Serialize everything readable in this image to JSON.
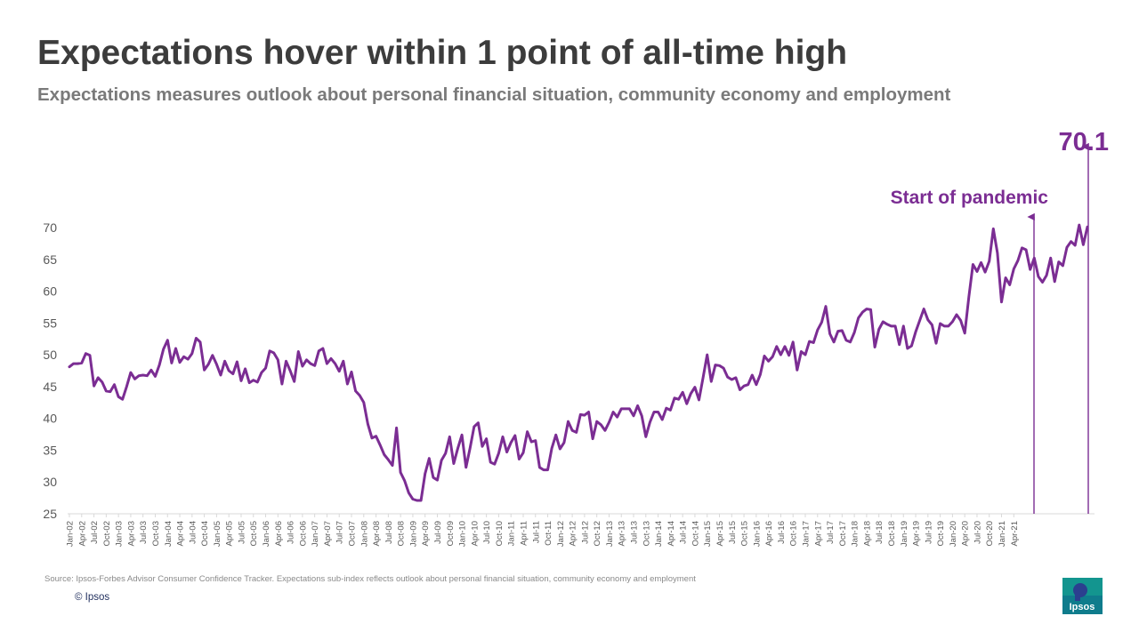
{
  "header": {
    "title": "Expectations hover within 1 point of all-time high",
    "subtitle": "Expectations measures outlook about personal financial situation, community economy and employment"
  },
  "footer": {
    "source": "Source: Ipsos-Forbes Advisor Consumer Confidence Tracker. Expectations sub-index reflects outlook about personal financial situation, community economy and employment",
    "copyright": "© Ipsos",
    "logo_text": "Ipsos"
  },
  "colors": {
    "series": "#7b2d93",
    "title": "#3c3c3c",
    "subtitle": "#7a7a7a"
  },
  "chart_data": {
    "type": "line",
    "title": "",
    "xlabel": "",
    "ylabel": "",
    "ylim": [
      25,
      72
    ],
    "yticks": [
      25,
      30,
      35,
      40,
      45,
      50,
      55,
      60,
      65,
      70
    ],
    "grid": false,
    "legend": "none",
    "x_labels": [
      "Jan-02",
      "Apr-02",
      "Jul-02",
      "Oct-02",
      "Jan-03",
      "Apr-03",
      "Jul-03",
      "Oct-03",
      "Jan-04",
      "Apr-04",
      "Jul-04",
      "Oct-04",
      "Jan-05",
      "Apr-05",
      "Jul-05",
      "Oct-05",
      "Jan-06",
      "Apr-06",
      "Jul-06",
      "Oct-06",
      "Jan-07",
      "Apr-07",
      "Jul-07",
      "Oct-07",
      "Jan-08",
      "Apr-08",
      "Jul-08",
      "Oct-08",
      "Jan-09",
      "Apr-09",
      "Jul-09",
      "Oct-09",
      "Jan-10",
      "Apr-10",
      "Jul-10",
      "Oct-10",
      "Jan-11",
      "Apr-11",
      "Jul-11",
      "Oct-11",
      "Jan-12",
      "Apr-12",
      "Jul-12",
      "Oct-12",
      "Jan-13",
      "Apr-13",
      "Jul-13",
      "Oct-13",
      "Jan-14",
      "Apr-14",
      "Jul-14",
      "Oct-14",
      "Jan-15",
      "Apr-15",
      "Jul-15",
      "Oct-15",
      "Jan-16",
      "Apr-16",
      "Jul-16",
      "Oct-16",
      "Jan-17",
      "Apr-17",
      "Jul-17",
      "Oct-17",
      "Jan-18",
      "Apr-18",
      "Jul-18",
      "Oct-18",
      "Jan-19",
      "Apr-19",
      "Jul-19",
      "Oct-19",
      "Jan-20",
      "Apr-20",
      "Jul-20",
      "Oct-20",
      "Jan-21",
      "Apr-21"
    ],
    "series": [
      {
        "values": [
          48.1,
          48.6,
          48.6,
          48.7,
          50.2,
          49.9,
          45.1,
          46.4,
          45.7,
          44.3,
          44.2,
          45.3,
          43.4,
          43.0,
          45.0,
          47.2,
          46.2,
          46.7,
          46.8,
          46.7,
          47.6,
          46.6,
          48.4,
          50.9,
          52.3,
          48.7,
          51.0,
          48.8,
          49.7,
          49.3,
          50.2,
          52.6,
          52.0,
          47.6,
          48.5,
          49.9,
          48.5,
          46.8,
          49.0,
          47.5,
          47.0,
          48.9,
          45.9,
          47.8,
          45.6,
          46.0,
          45.7,
          47.2,
          47.9,
          50.6,
          50.3,
          49.2,
          45.4,
          49.0,
          47.5,
          45.8,
          50.5,
          48.2,
          49.2,
          48.6,
          48.3,
          50.6,
          51.0,
          48.6,
          49.4,
          48.6,
          47.4,
          49.0,
          45.4,
          47.3,
          44.3,
          43.6,
          42.5,
          39.1,
          36.9,
          37.2,
          35.8,
          34.3,
          33.5,
          32.6,
          38.5,
          31.5,
          30.2,
          28.3,
          27.3,
          27.1,
          27.1,
          31.3,
          33.7,
          30.7,
          30.3,
          33.4,
          34.5,
          37.1,
          32.9,
          35.3,
          37.4,
          32.3,
          35.3,
          38.7,
          39.3,
          35.6,
          36.8,
          33.1,
          32.8,
          34.5,
          37.1,
          34.7,
          36.2,
          37.3,
          33.6,
          34.6,
          37.9,
          36.3,
          36.5,
          32.3,
          31.9,
          31.9,
          35.3,
          37.4,
          35.2,
          36.2,
          39.5,
          38.1,
          37.8,
          40.6,
          40.5,
          41.0,
          36.8,
          39.5,
          39.0,
          38.1,
          39.4,
          41.0,
          40.2,
          41.5,
          41.5,
          41.5,
          40.4,
          42.0,
          40.4,
          37.1,
          39.4,
          41.0,
          41.0,
          39.8,
          41.6,
          41.3,
          43.2,
          43.0,
          44.1,
          42.3,
          43.9,
          44.9,
          42.9,
          46.4,
          50.0,
          45.8,
          48.4,
          48.3,
          47.9,
          46.5,
          46.1,
          46.4,
          44.5,
          45.1,
          45.3,
          46.8,
          45.3,
          46.9,
          49.8,
          49.0,
          49.7,
          51.3,
          50.0,
          51.3,
          49.9,
          52.0,
          47.6,
          50.5,
          50.0,
          52.1,
          51.9,
          53.9,
          55.1,
          57.6,
          53.3,
          52.0,
          53.7,
          53.8,
          52.3,
          52.0,
          53.5,
          55.8,
          56.7,
          57.2,
          57.1,
          51.2,
          54.0,
          55.2,
          54.8,
          54.5,
          54.5,
          51.6,
          54.5,
          51.0,
          51.4,
          53.6,
          55.4,
          57.2,
          55.5,
          54.7,
          51.8,
          54.9,
          54.5,
          54.5,
          55.2,
          56.3,
          55.4,
          53.4,
          59.1,
          64.2,
          63.1,
          64.5,
          63.0,
          64.7,
          69.8,
          66.0,
          58.3,
          62.1,
          61.0,
          63.5,
          64.8,
          66.8,
          66.5,
          63.4,
          65.2,
          62.3,
          61.4,
          62.5,
          65.2,
          61.5,
          64.6,
          64.0,
          66.9,
          67.8,
          67.2,
          70.4,
          67.3,
          70.1
        ]
      }
    ],
    "annotations": [
      {
        "text": "Start of pandemic",
        "at": "Apr-20"
      },
      {
        "text": "70.1",
        "at": "Apr-21"
      }
    ]
  }
}
